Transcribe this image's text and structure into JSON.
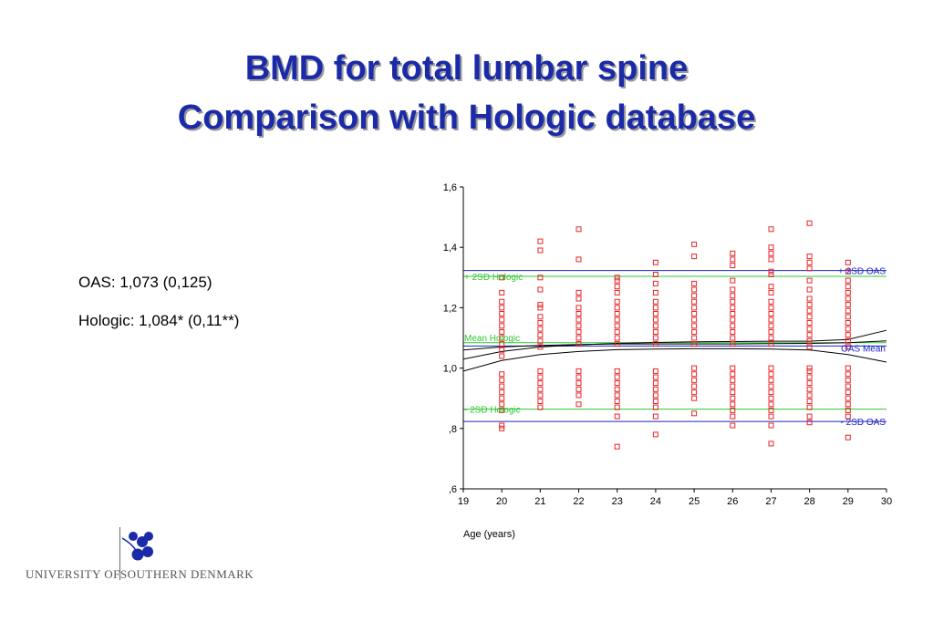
{
  "slide": {
    "title_line1": "BMD for total lumbar spine",
    "title_line2": "Comparison with Hologic database",
    "stat_oas": "OAS: 1,073 (0,125)",
    "stat_hologic": "Hologic: 1,084* (0,11**)"
  },
  "logo": {
    "icon": "leaf-sprig-icon",
    "text_part1": "UNIVERSITY OF",
    "text_part2": "SOUTHERN DENMARK",
    "color": "#1a2aa8"
  },
  "chart_data": {
    "type": "scatter",
    "xlabel": "Age (years)",
    "ylabel": "",
    "xlim": [
      19,
      30
    ],
    "ylim": [
      0.6,
      1.6
    ],
    "x_ticks": [
      "19",
      "20",
      "21",
      "22",
      "23",
      "24",
      "25",
      "26",
      "27",
      "28",
      "29",
      "30"
    ],
    "y_ticks": [
      {
        "value": 0.6,
        "label": ",6"
      },
      {
        "value": 0.8,
        "label": ",8"
      },
      {
        "value": 1.0,
        "label": "1,0"
      },
      {
        "value": 1.2,
        "label": "1,2"
      },
      {
        "value": 1.4,
        "label": "1,4"
      },
      {
        "value": 1.6,
        "label": "1,6"
      }
    ],
    "grid": false,
    "marker_color": "#e8262a",
    "points_by_age": [
      {
        "x": 20,
        "y": [
          1.3,
          1.25,
          1.22,
          1.2,
          1.18,
          1.16,
          1.14,
          1.12,
          1.1,
          1.08,
          1.06,
          1.04,
          0.98,
          0.96,
          0.94,
          0.92,
          0.9,
          0.88,
          0.86,
          0.8,
          0.81
        ]
      },
      {
        "x": 21,
        "y": [
          1.42,
          1.39,
          1.3,
          1.26,
          1.21,
          1.2,
          1.17,
          1.15,
          1.13,
          1.11,
          1.09,
          1.07,
          0.99,
          0.97,
          0.95,
          0.93,
          0.91,
          0.89,
          0.87
        ]
      },
      {
        "x": 22,
        "y": [
          1.46,
          1.36,
          1.25,
          1.23,
          1.2,
          1.18,
          1.16,
          1.14,
          1.12,
          1.1,
          1.08,
          0.99,
          0.97,
          0.95,
          0.93,
          0.91,
          0.88
        ]
      },
      {
        "x": 23,
        "y": [
          1.3,
          1.29,
          1.27,
          1.25,
          1.22,
          1.2,
          1.18,
          1.16,
          1.14,
          1.12,
          1.1,
          1.08,
          0.99,
          0.97,
          0.95,
          0.93,
          0.91,
          0.89,
          0.87,
          0.84,
          0.74
        ]
      },
      {
        "x": 24,
        "y": [
          1.35,
          1.31,
          1.28,
          1.25,
          1.22,
          1.2,
          1.18,
          1.16,
          1.14,
          1.12,
          1.1,
          1.08,
          0.99,
          0.97,
          0.95,
          0.93,
          0.91,
          0.89,
          0.87,
          0.84,
          0.78
        ]
      },
      {
        "x": 25,
        "y": [
          1.41,
          1.37,
          1.28,
          1.26,
          1.24,
          1.22,
          1.2,
          1.18,
          1.16,
          1.14,
          1.12,
          1.1,
          1.08,
          1.0,
          0.98,
          0.96,
          0.94,
          0.92,
          0.9,
          0.85
        ]
      },
      {
        "x": 26,
        "y": [
          1.38,
          1.36,
          1.34,
          1.29,
          1.26,
          1.24,
          1.22,
          1.2,
          1.18,
          1.16,
          1.14,
          1.12,
          1.1,
          1.08,
          1.0,
          0.98,
          0.96,
          0.94,
          0.92,
          0.9,
          0.88,
          0.86,
          0.84,
          0.81
        ]
      },
      {
        "x": 27,
        "y": [
          1.46,
          1.4,
          1.38,
          1.36,
          1.32,
          1.31,
          1.27,
          1.25,
          1.22,
          1.2,
          1.18,
          1.16,
          1.14,
          1.12,
          1.1,
          1.08,
          1.0,
          0.98,
          0.96,
          0.94,
          0.92,
          0.9,
          0.88,
          0.86,
          0.84,
          0.81,
          0.75
        ]
      },
      {
        "x": 28,
        "y": [
          1.48,
          1.37,
          1.35,
          1.33,
          1.29,
          1.26,
          1.23,
          1.21,
          1.19,
          1.17,
          1.15,
          1.13,
          1.11,
          1.09,
          1.07,
          1.0,
          0.99,
          0.97,
          0.95,
          0.93,
          0.91,
          0.89,
          0.87,
          0.84,
          0.82
        ]
      },
      {
        "x": 29,
        "y": [
          1.35,
          1.32,
          1.29,
          1.27,
          1.25,
          1.23,
          1.21,
          1.19,
          1.17,
          1.15,
          1.13,
          1.11,
          1.09,
          1.07,
          1.0,
          0.98,
          0.96,
          0.94,
          0.92,
          0.9,
          0.88,
          0.86,
          0.84,
          0.77
        ]
      }
    ],
    "reference_lines": [
      {
        "name": "+ 2SD OAS",
        "y": 1.323,
        "color": "#1f22c8"
      },
      {
        "name": "OAS Mean",
        "y": 1.073,
        "color": "#1f22c8"
      },
      {
        "name": "- 2SD OAS",
        "y": 0.823,
        "color": "#1f22c8"
      },
      {
        "name": "+ 2SD Hologic",
        "y": 1.304,
        "color": "#2ec82e"
      },
      {
        "name": "Mean Hologic",
        "y": 1.084,
        "color": "#2ec82e"
      },
      {
        "name": "- 2SD Hologic",
        "y": 0.864,
        "color": "#2ec82e"
      }
    ],
    "label_texts": {
      "plus_2sd_oas": "+ 2SD OAS",
      "oas_mean": "OAS Mean",
      "minus_2sd_oas": "- 2SD OAS",
      "plus_2sd_hologic": "+ 2SD Hologic",
      "mean_hologic": "Mean Hologic",
      "minus_2sd_hologic": "- 2SD Hologic"
    },
    "fit_curves": [
      {
        "x": [
          19,
          20,
          21,
          22,
          23,
          24,
          25,
          26,
          27,
          28,
          29,
          30
        ],
        "y": [
          1.03,
          1.055,
          1.07,
          1.077,
          1.082,
          1.085,
          1.087,
          1.088,
          1.089,
          1.089,
          1.095,
          1.125
        ]
      },
      {
        "x": [
          19,
          20,
          21,
          22,
          23,
          24,
          25,
          26,
          27,
          28,
          29,
          30
        ],
        "y": [
          1.06,
          1.07,
          1.075,
          1.078,
          1.08,
          1.08,
          1.08,
          1.08,
          1.081,
          1.082,
          1.084,
          1.09
        ]
      },
      {
        "x": [
          19,
          20,
          21,
          22,
          23,
          24,
          25,
          26,
          27,
          28,
          29,
          30
        ],
        "y": [
          0.99,
          1.025,
          1.045,
          1.055,
          1.061,
          1.063,
          1.064,
          1.064,
          1.063,
          1.06,
          1.045,
          1.02
        ]
      }
    ],
    "curve_color": "#000000"
  }
}
